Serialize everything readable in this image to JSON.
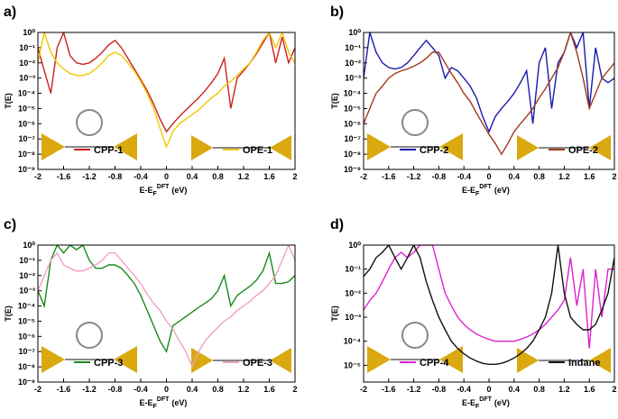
{
  "chart_data": [
    {
      "type": "line",
      "title": "a)",
      "y_label": "T(E)",
      "x_label": {
        "text": "E-E",
        "sub": "F",
        "sup": "DFT",
        "unit": "(eV)"
      },
      "log_y": true,
      "x": [
        -2,
        -1.9,
        -1.8,
        -1.7,
        -1.6,
        -1.5,
        -1.4,
        -1.3,
        -1.2,
        -1.1,
        -1,
        -0.9,
        -0.8,
        -0.7,
        -0.6,
        -0.5,
        -0.4,
        -0.3,
        -0.2,
        -0.1,
        0,
        0.1,
        0.2,
        0.3,
        0.4,
        0.5,
        0.6,
        0.7,
        0.8,
        0.9,
        1,
        1.1,
        1.2,
        1.3,
        1.4,
        1.5,
        1.6,
        1.7,
        1.8,
        1.9,
        2
      ],
      "xlim": [
        -2,
        2
      ],
      "xticks": [
        -2,
        -1.6,
        -1.2,
        -0.8,
        -0.4,
        0,
        0.4,
        0.8,
        1.2,
        1.6,
        2
      ],
      "ylim": [
        1e-09,
        1
      ],
      "yticks": [
        {
          "value": 1,
          "label": "10⁰"
        },
        {
          "value": 0.1,
          "label": "10⁻¹"
        },
        {
          "value": 0.01,
          "label": "10⁻²"
        },
        {
          "value": 0.001,
          "label": "10⁻³"
        },
        {
          "value": 0.0001,
          "label": "10⁻⁴"
        },
        {
          "value": 1e-05,
          "label": "10⁻⁵"
        },
        {
          "value": 1e-06,
          "label": "10⁻⁶"
        },
        {
          "value": 1e-07,
          "label": "10⁻⁷"
        },
        {
          "value": 1e-08,
          "label": "10⁻⁸"
        },
        {
          "value": 1e-09,
          "label": "10⁻⁹"
        }
      ],
      "series": [
        {
          "name": "CPP-1",
          "color": "#cc2020",
          "values": [
            0.1,
            0.003,
            0.0001,
            0.1,
            1,
            0.03,
            0.01,
            0.008,
            0.01,
            0.02,
            0.05,
            0.15,
            0.3,
            0.1,
            0.02,
            0.004,
            0.0008,
            0.00015,
            2e-05,
            2e-06,
            3e-07,
            1e-06,
            3e-06,
            8e-06,
            2e-05,
            5e-05,
            0.00015,
            0.0005,
            0.002,
            0.02,
            1e-05,
            0.001,
            0.003,
            0.01,
            0.04,
            0.2,
            1,
            0.01,
            0.5,
            0.01,
            0.1
          ]
        },
        {
          "name": "OPE-1",
          "color": "#f0c800",
          "values": [
            0.01,
            1,
            0.05,
            0.01,
            0.004,
            0.002,
            0.0015,
            0.0015,
            0.002,
            0.004,
            0.01,
            0.03,
            0.05,
            0.03,
            0.01,
            0.003,
            0.0006,
            0.0001,
            1e-05,
            5e-07,
            3e-08,
            3e-07,
            1e-06,
            2e-06,
            4e-06,
            8e-06,
            2e-05,
            5e-05,
            0.0001,
            0.0003,
            0.0006,
            0.0015,
            0.004,
            0.01,
            0.05,
            0.3,
            1,
            0.1,
            1,
            0.05,
            0.01
          ]
        }
      ]
    },
    {
      "type": "line",
      "title": "b)",
      "y_label": "T(E)",
      "x_label": {
        "text": "E-E",
        "sub": "F",
        "sup": "DFT",
        "unit": "(eV)"
      },
      "log_y": true,
      "x": [
        -2,
        -1.9,
        -1.8,
        -1.7,
        -1.6,
        -1.5,
        -1.4,
        -1.3,
        -1.2,
        -1.1,
        -1,
        -0.9,
        -0.8,
        -0.7,
        -0.6,
        -0.5,
        -0.4,
        -0.3,
        -0.2,
        -0.1,
        0,
        0.1,
        0.2,
        0.3,
        0.4,
        0.5,
        0.6,
        0.7,
        0.8,
        0.9,
        1,
        1.1,
        1.2,
        1.3,
        1.4,
        1.5,
        1.6,
        1.7,
        1.8,
        1.9,
        2
      ],
      "xlim": [
        -2,
        2
      ],
      "xticks": [
        -2,
        -1.6,
        -1.2,
        -0.8,
        -0.4,
        0,
        0.4,
        0.8,
        1.2,
        1.6,
        2
      ],
      "ylim": [
        1e-09,
        1
      ],
      "yticks": [
        {
          "value": 1,
          "label": "10⁰"
        },
        {
          "value": 0.1,
          "label": "10⁻¹"
        },
        {
          "value": 0.01,
          "label": "10⁻²"
        },
        {
          "value": 0.001,
          "label": "10⁻³"
        },
        {
          "value": 0.0001,
          "label": "10⁻⁴"
        },
        {
          "value": 1e-05,
          "label": "10⁻⁵"
        },
        {
          "value": 1e-06,
          "label": "10⁻⁶"
        },
        {
          "value": 1e-07,
          "label": "10⁻⁷"
        },
        {
          "value": 1e-08,
          "label": "10⁻⁸"
        },
        {
          "value": 1e-09,
          "label": "10⁻⁹"
        }
      ],
      "series": [
        {
          "name": "CPP-2",
          "color": "#1a1aaa",
          "values": [
            0.001,
            1,
            0.05,
            0.01,
            0.005,
            0.004,
            0.005,
            0.01,
            0.03,
            0.1,
            0.3,
            0.1,
            0.03,
            0.001,
            0.005,
            0.003,
            0.001,
            0.0003,
            5e-05,
            3e-06,
            3e-07,
            3e-06,
            1e-05,
            3e-05,
            0.0001,
            0.0005,
            0.003,
            1e-06,
            0.01,
            0.1,
            1e-05,
            0.01,
            0.05,
            1,
            0.1,
            1,
            1e-05,
            0.1,
            0.001,
            0.0005,
            0.001
          ]
        },
        {
          "name": "OPE-2",
          "color": "#a0391a",
          "values": [
            1e-06,
            1e-05,
            0.0001,
            0.0003,
            0.001,
            0.002,
            0.003,
            0.004,
            0.006,
            0.01,
            0.02,
            0.05,
            0.05,
            0.01,
            0.002,
            0.0005,
            0.0001,
            3e-05,
            5e-06,
            1e-06,
            2e-07,
            5e-08,
            1e-08,
            5e-08,
            3e-07,
            1e-06,
            3e-06,
            1e-05,
            5e-05,
            0.0002,
            0.001,
            0.005,
            0.05,
            1,
            0.05,
            0.001,
            1e-05,
            0.0001,
            0.001,
            0.003,
            0.01
          ]
        }
      ]
    },
    {
      "type": "line",
      "title": "c)",
      "y_label": "T(E)",
      "x_label": {
        "text": "E-E",
        "sub": "F",
        "sup": "DFT",
        "unit": "(eV)"
      },
      "log_y": true,
      "x": [
        -2,
        -1.9,
        -1.8,
        -1.7,
        -1.6,
        -1.5,
        -1.4,
        -1.3,
        -1.2,
        -1.1,
        -1,
        -0.9,
        -0.8,
        -0.7,
        -0.6,
        -0.5,
        -0.4,
        -0.3,
        -0.2,
        -0.1,
        0,
        0.1,
        0.2,
        0.3,
        0.4,
        0.5,
        0.6,
        0.7,
        0.8,
        0.9,
        1,
        1.1,
        1.2,
        1.3,
        1.4,
        1.5,
        1.6,
        1.7,
        1.8,
        1.9,
        2
      ],
      "xlim": [
        -2,
        2
      ],
      "xticks": [
        -2,
        -1.6,
        -1.2,
        -0.8,
        -0.4,
        0,
        0.4,
        0.8,
        1.2,
        1.6,
        2
      ],
      "ylim": [
        1e-09,
        1
      ],
      "yticks": [
        {
          "value": 1,
          "label": "10⁰"
        },
        {
          "value": 0.1,
          "label": "10⁻¹"
        },
        {
          "value": 0.01,
          "label": "10⁻²"
        },
        {
          "value": 0.001,
          "label": "10⁻³"
        },
        {
          "value": 0.0001,
          "label": "10⁻⁴"
        },
        {
          "value": 1e-05,
          "label": "10⁻⁵"
        },
        {
          "value": 1e-06,
          "label": "10⁻⁶"
        },
        {
          "value": 1e-07,
          "label": "10⁻⁷"
        },
        {
          "value": 1e-08,
          "label": "10⁻⁸"
        },
        {
          "value": 1e-09,
          "label": "10⁻⁹"
        }
      ],
      "series": [
        {
          "name": "CPP-3",
          "color": "#1a8a1a",
          "values": [
            0.001,
            0.0001,
            0.1,
            1,
            0.3,
            1,
            0.5,
            1,
            0.1,
            0.03,
            0.03,
            0.05,
            0.05,
            0.03,
            0.01,
            0.003,
            0.0005,
            5e-05,
            5e-06,
            5e-07,
            1e-07,
            5e-06,
            1e-05,
            2e-05,
            4e-05,
            8e-05,
            0.00015,
            0.0003,
            0.001,
            0.01,
            0.0001,
            0.0005,
            0.001,
            0.002,
            0.005,
            0.02,
            0.3,
            0.003,
            0.003,
            0.004,
            0.01
          ]
        },
        {
          "name": "OPE-3",
          "color": "#f0a0c0",
          "values": [
            0.001,
            0.01,
            0.1,
            0.3,
            0.05,
            0.03,
            0.02,
            0.02,
            0.03,
            0.05,
            0.1,
            0.3,
            0.3,
            0.1,
            0.03,
            0.01,
            0.003,
            0.0006,
            0.00015,
            5e-05,
            1e-05,
            3e-06,
            5e-07,
            1e-07,
            1e-08,
            1e-07,
            5e-07,
            1.5e-06,
            4e-06,
            1e-05,
            2e-05,
            5e-05,
            0.0001,
            0.0002,
            0.0005,
            0.001,
            0.003,
            0.01,
            0.1,
            1,
            0.1
          ]
        }
      ]
    },
    {
      "type": "line",
      "title": "d)",
      "y_label": "T(E)",
      "x_label": {
        "text": "E-E",
        "sub": "F",
        "sup": "DFT",
        "unit": "(eV)"
      },
      "log_y": true,
      "x": [
        -2,
        -1.9,
        -1.8,
        -1.7,
        -1.6,
        -1.5,
        -1.4,
        -1.3,
        -1.2,
        -1.1,
        -1,
        -0.9,
        -0.8,
        -0.7,
        -0.6,
        -0.5,
        -0.4,
        -0.3,
        -0.2,
        -0.1,
        0,
        0.1,
        0.2,
        0.3,
        0.4,
        0.5,
        0.6,
        0.7,
        0.8,
        0.9,
        1,
        1.1,
        1.2,
        1.3,
        1.4,
        1.5,
        1.6,
        1.7,
        1.8,
        1.9,
        2
      ],
      "xlim": [
        -2,
        2
      ],
      "xticks": [
        -2,
        -1.6,
        -1.2,
        -0.8,
        -0.4,
        0,
        0.4,
        0.8,
        1.2,
        1.6,
        2
      ],
      "ylim": [
        2e-06,
        1
      ],
      "yticks": [
        {
          "value": 1,
          "label": "10⁰"
        },
        {
          "value": 0.1,
          "label": "10⁻¹"
        },
        {
          "value": 0.01,
          "label": "10⁻²"
        },
        {
          "value": 0.001,
          "label": "10⁻³"
        },
        {
          "value": 0.0001,
          "label": "10⁻⁴"
        },
        {
          "value": 1e-05,
          "label": "10⁻⁵"
        }
      ],
      "series": [
        {
          "name": "CPP-4",
          "color": "#e020d0",
          "values": [
            0.002,
            0.005,
            0.01,
            0.03,
            0.1,
            0.3,
            0.5,
            0.3,
            0.5,
            1,
            1,
            1,
            0.1,
            0.01,
            0.003,
            0.001,
            0.0005,
            0.0003,
            0.0002,
            0.00015,
            0.00012,
            0.0001,
            0.0001,
            0.0001,
            0.0001,
            0.00012,
            0.00015,
            0.0002,
            0.0003,
            0.0005,
            0.001,
            0.002,
            0.005,
            0.3,
            0.003,
            0.1,
            5e-05,
            0.1,
            0.001,
            0.1,
            0.1
          ]
        },
        {
          "name": "Indane",
          "color": "#111111",
          "values": [
            0.05,
            0.1,
            0.3,
            0.5,
            1,
            0.3,
            0.1,
            0.3,
            1,
            0.3,
            0.03,
            0.005,
            0.001,
            0.0003,
            0.0001,
            5e-05,
            3e-05,
            2e-05,
            1.5e-05,
            1.2e-05,
            1.1e-05,
            1.1e-05,
            1.2e-05,
            1.5e-05,
            2e-05,
            3e-05,
            5e-05,
            0.0001,
            0.0003,
            0.001,
            0.01,
            1,
            0.01,
            0.001,
            0.0005,
            0.0003,
            0.0003,
            0.0005,
            0.002,
            0.01,
            0.3
          ]
        }
      ]
    }
  ]
}
